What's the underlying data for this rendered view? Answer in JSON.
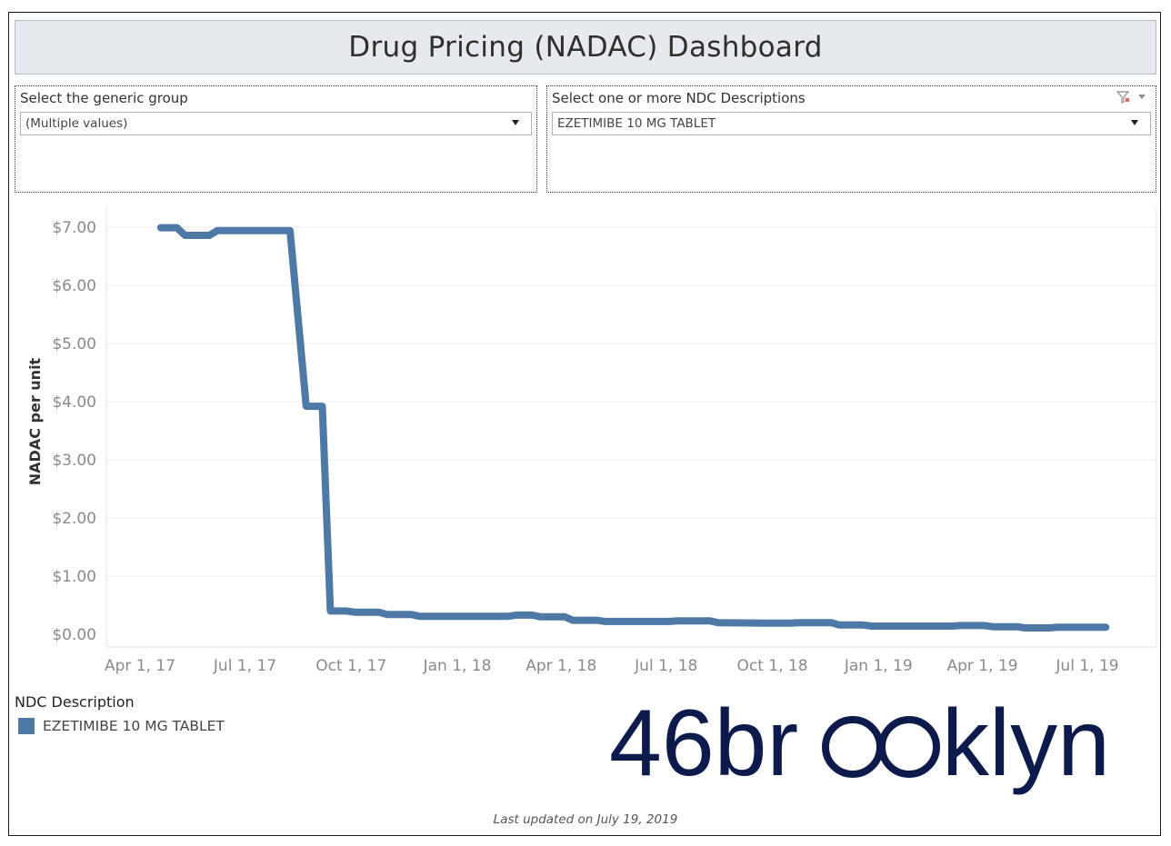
{
  "title": "Drug Pricing (NADAC) Dashboard",
  "filters": {
    "generic_group": {
      "label": "Select the generic group",
      "selected": "(Multiple values)"
    },
    "ndc_description": {
      "label": "Select one or more NDC Descriptions",
      "selected": "EZETIMIBE 10 MG TABLET",
      "icons": [
        "clear-filter-icon",
        "menu-caret-icon"
      ]
    }
  },
  "legend": {
    "title": "NDC Description",
    "items": [
      {
        "label": "EZETIMIBE 10 MG TABLET",
        "color": "#4e79a7"
      }
    ]
  },
  "brand": {
    "text": "46brooklyn",
    "color": "#0d1b4c"
  },
  "footer": "Last updated on July 19, 2019",
  "chart_data": {
    "type": "line",
    "ylabel": "NADAC per unit",
    "xlabel": "",
    "ylim": [
      0,
      7.2
    ],
    "y_ticks": [
      {
        "value": 7,
        "label": "$7.00"
      },
      {
        "value": 6,
        "label": "$6.00"
      },
      {
        "value": 5,
        "label": "$5.00"
      },
      {
        "value": 4,
        "label": "$4.00"
      },
      {
        "value": 3,
        "label": "$3.00"
      },
      {
        "value": 2,
        "label": "$2.00"
      },
      {
        "value": 1,
        "label": "$1.00"
      },
      {
        "value": 0,
        "label": "$0.00"
      }
    ],
    "x_ticks": [
      {
        "value": "2017-04-01",
        "label": "Apr 1, 17"
      },
      {
        "value": "2017-07-01",
        "label": "Jul 1, 17"
      },
      {
        "value": "2017-10-01",
        "label": "Oct 1, 17"
      },
      {
        "value": "2018-01-01",
        "label": "Jan 1, 18"
      },
      {
        "value": "2018-04-01",
        "label": "Apr 1, 18"
      },
      {
        "value": "2018-07-01",
        "label": "Jul 1, 18"
      },
      {
        "value": "2018-10-01",
        "label": "Oct 1, 18"
      },
      {
        "value": "2019-01-01",
        "label": "Jan 1, 19"
      },
      {
        "value": "2019-04-01",
        "label": "Apr 1, 19"
      },
      {
        "value": "2019-07-01",
        "label": "Jul 1, 19"
      }
    ],
    "grid": "horizontal",
    "series": [
      {
        "name": "EZETIMIBE 10 MG TABLET",
        "color": "#4e79a7",
        "points": [
          [
            "2017-04-19",
            6.99
          ],
          [
            "2017-05-03",
            6.99
          ],
          [
            "2017-05-10",
            6.86
          ],
          [
            "2017-05-31",
            6.86
          ],
          [
            "2017-06-07",
            6.94
          ],
          [
            "2017-08-09",
            6.94
          ],
          [
            "2017-08-23",
            3.92
          ],
          [
            "2017-09-06",
            3.92
          ],
          [
            "2017-09-13",
            0.4
          ],
          [
            "2017-09-27",
            0.4
          ],
          [
            "2017-10-04",
            0.38
          ],
          [
            "2017-10-25",
            0.38
          ],
          [
            "2017-11-01",
            0.34
          ],
          [
            "2017-11-22",
            0.34
          ],
          [
            "2017-11-29",
            0.31
          ],
          [
            "2018-02-14",
            0.31
          ],
          [
            "2018-02-21",
            0.33
          ],
          [
            "2018-03-07",
            0.33
          ],
          [
            "2018-03-14",
            0.3
          ],
          [
            "2018-04-04",
            0.3
          ],
          [
            "2018-04-11",
            0.24
          ],
          [
            "2018-05-02",
            0.24
          ],
          [
            "2018-05-09",
            0.22
          ],
          [
            "2018-07-04",
            0.22
          ],
          [
            "2018-07-11",
            0.23
          ],
          [
            "2018-08-08",
            0.23
          ],
          [
            "2018-08-15",
            0.2
          ],
          [
            "2018-09-26",
            0.19
          ],
          [
            "2018-10-17",
            0.19
          ],
          [
            "2018-10-24",
            0.2
          ],
          [
            "2018-11-21",
            0.2
          ],
          [
            "2018-11-28",
            0.16
          ],
          [
            "2018-12-19",
            0.16
          ],
          [
            "2018-12-26",
            0.14
          ],
          [
            "2019-03-06",
            0.14
          ],
          [
            "2019-03-13",
            0.15
          ],
          [
            "2019-04-03",
            0.15
          ],
          [
            "2019-04-10",
            0.13
          ],
          [
            "2019-05-01",
            0.13
          ],
          [
            "2019-05-08",
            0.11
          ],
          [
            "2019-05-29",
            0.11
          ],
          [
            "2019-06-05",
            0.12
          ],
          [
            "2019-07-17",
            0.12
          ]
        ]
      }
    ]
  }
}
